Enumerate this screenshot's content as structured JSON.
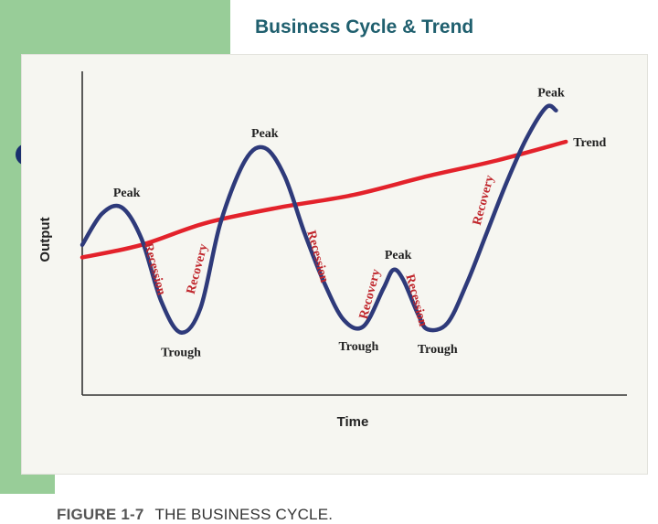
{
  "slide": {
    "title": "Business Cycle & Trend"
  },
  "figure": {
    "label": "FIGURE 1-7",
    "caption": "THE BUSINESS CYCLE."
  },
  "colors": {
    "cycle_line": "#2e3a7a",
    "trend_line": "#e3222b",
    "slide_title": "#1f5f6e",
    "side_band": "#98cd98",
    "bullet": "#1a2f6e"
  },
  "chart_data": {
    "type": "line",
    "title": "",
    "xlabel": "Time",
    "ylabel": "Output",
    "xlim": [
      0,
      100
    ],
    "ylim": [
      0,
      100
    ],
    "grid": false,
    "legend": "none",
    "series": [
      {
        "name": "",
        "values": [
          [
            0,
            48
          ],
          [
            4,
            58
          ],
          [
            8,
            60
          ],
          [
            12,
            50
          ],
          [
            16,
            30
          ],
          [
            20,
            20
          ],
          [
            24,
            28
          ],
          [
            28,
            55
          ],
          [
            33,
            75
          ],
          [
            37,
            79
          ],
          [
            41,
            70
          ],
          [
            45,
            52
          ],
          [
            49,
            36
          ],
          [
            53,
            24
          ],
          [
            57,
            22
          ],
          [
            61,
            34
          ],
          [
            63,
            40
          ],
          [
            65,
            37
          ],
          [
            68,
            26
          ],
          [
            70,
            21
          ],
          [
            74,
            23
          ],
          [
            78,
            36
          ],
          [
            82,
            52
          ],
          [
            86,
            68
          ],
          [
            90,
            82
          ],
          [
            94,
            92
          ],
          [
            96,
            91
          ]
        ]
      },
      {
        "name": "Trend",
        "values": [
          [
            0,
            44
          ],
          [
            12,
            48
          ],
          [
            25,
            55
          ],
          [
            40,
            60
          ],
          [
            55,
            64
          ],
          [
            70,
            70
          ],
          [
            84,
            75
          ],
          [
            98,
            81
          ]
        ]
      }
    ],
    "point_labels": [
      {
        "text": "Peak",
        "x": 9,
        "y": 60
      },
      {
        "text": "Trough",
        "x": 20,
        "y": 20
      },
      {
        "text": "Peak",
        "x": 37,
        "y": 79
      },
      {
        "text": "Trough",
        "x": 56,
        "y": 22
      },
      {
        "text": "Peak",
        "x": 64,
        "y": 40
      },
      {
        "text": "Trough",
        "x": 72,
        "y": 21
      },
      {
        "text": "Peak",
        "x": 95,
        "y": 92
      },
      {
        "text": "Trend",
        "x": 98,
        "y": 81
      }
    ],
    "phase_labels": [
      {
        "text": "Recession",
        "x": 14,
        "y": 40
      },
      {
        "text": "Recovery",
        "x": 24,
        "y": 40
      },
      {
        "text": "Recession",
        "x": 47,
        "y": 44
      },
      {
        "text": "Recovery",
        "x": 59,
        "y": 32
      },
      {
        "text": "Recession",
        "x": 67,
        "y": 30
      },
      {
        "text": "Recovery",
        "x": 82,
        "y": 62
      }
    ]
  }
}
